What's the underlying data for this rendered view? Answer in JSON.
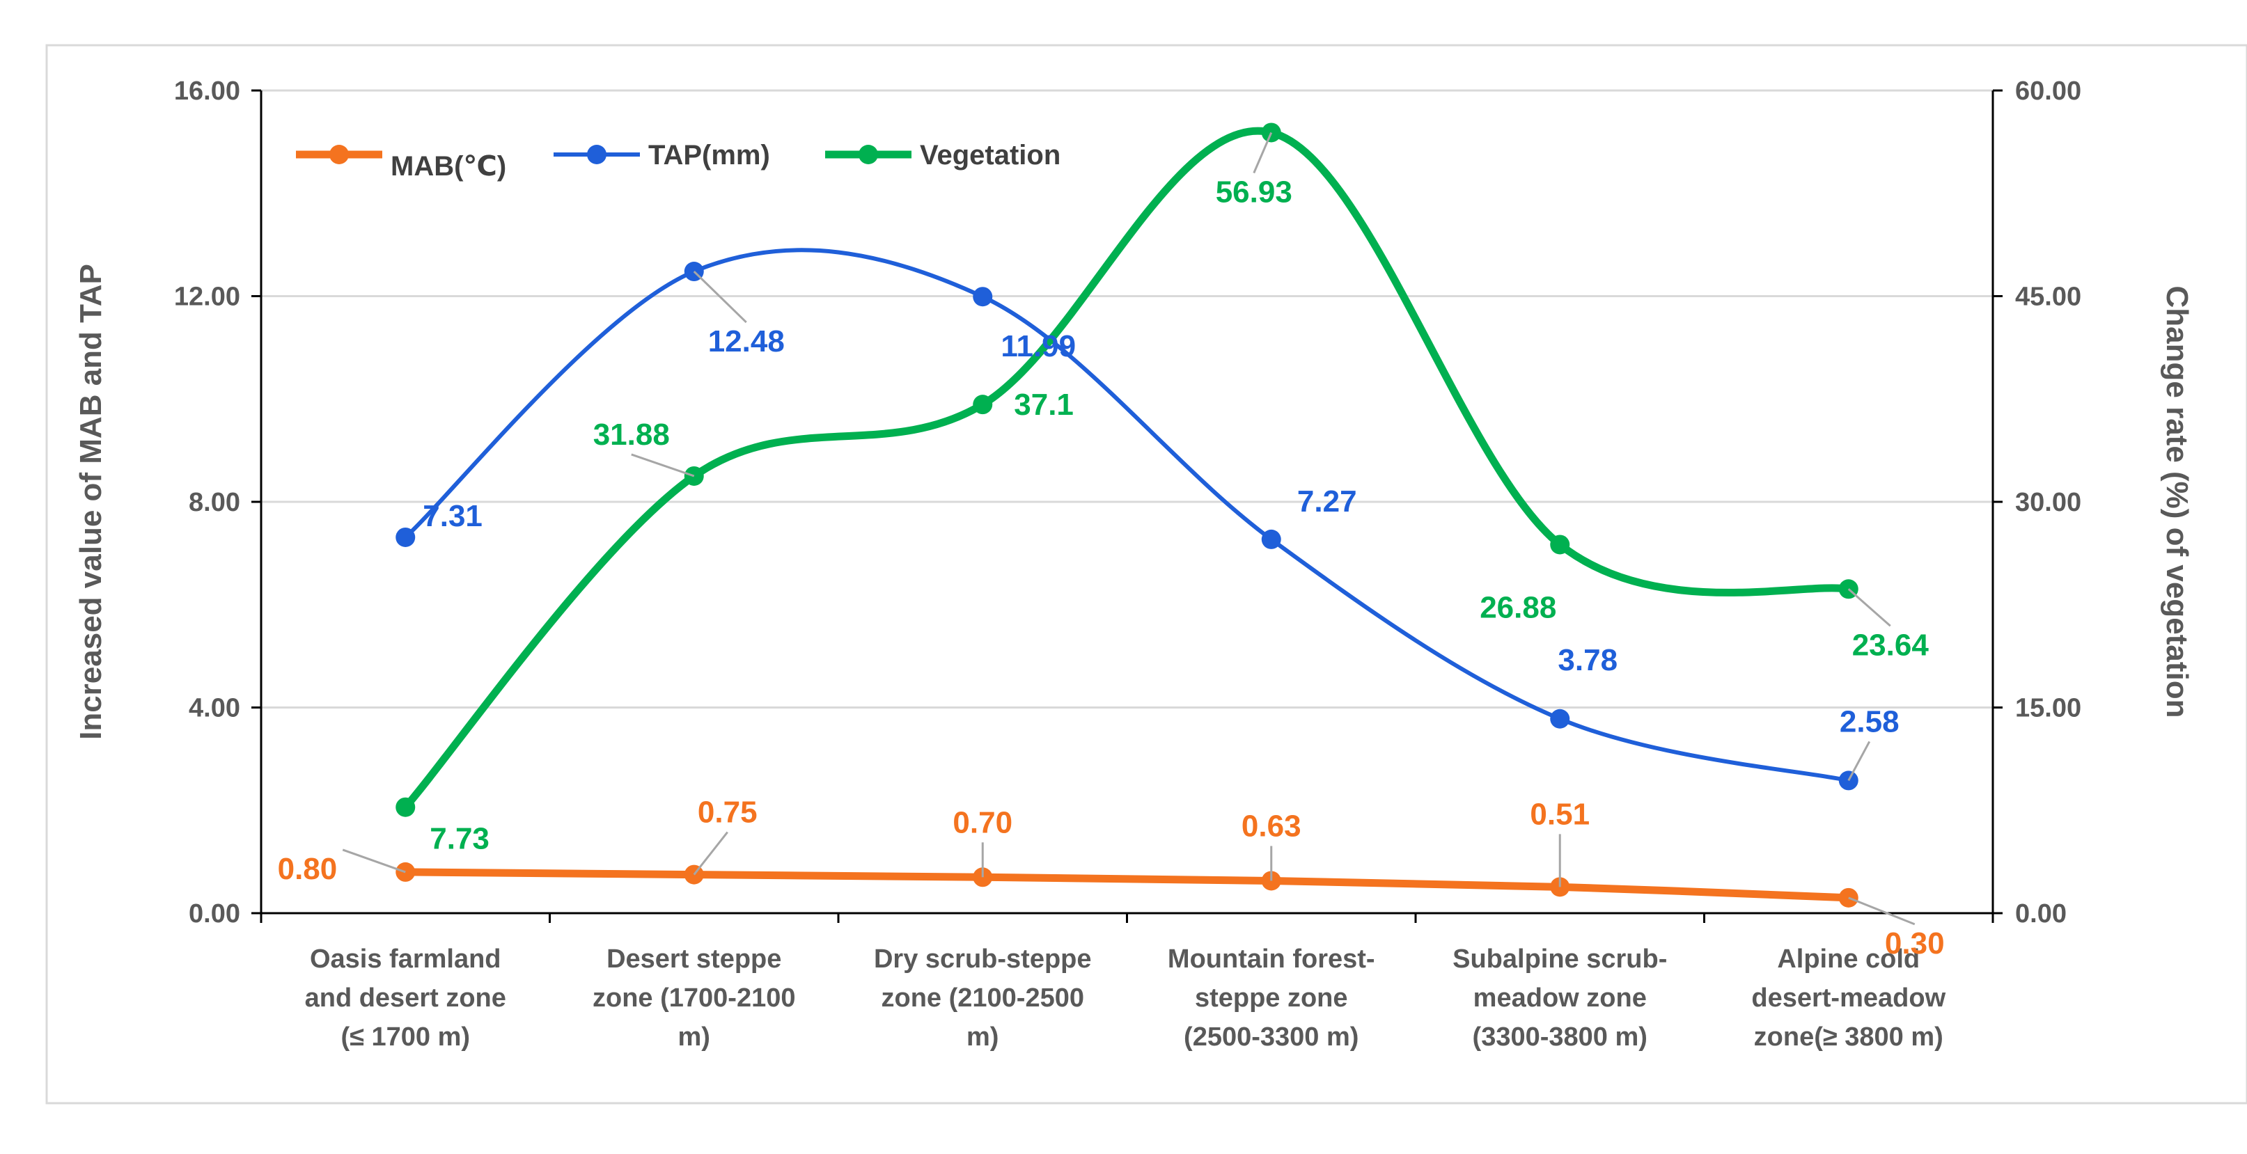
{
  "chart_data": {
    "type": "line",
    "title": "",
    "categories": [
      [
        "Oasis farmland",
        "and desert zone",
        "(≤ 1700 m)"
      ],
      [
        "Desert steppe",
        "zone (1700-2100",
        "m)"
      ],
      [
        "Dry scrub-steppe",
        "zone (2100-2500",
        "m)"
      ],
      [
        "Mountain forest-",
        "steppe zone",
        "(2500-3300 m)"
      ],
      [
        "Subalpine scrub-",
        "meadow zone",
        "(3300-3800 m)"
      ],
      [
        "Alpine cold",
        "desert-meadow",
        "zone(≥ 3800 m)"
      ]
    ],
    "left_axis": {
      "label": "Increased value of MAB and TAP",
      "range": [
        0,
        16
      ],
      "ticks": [
        "0.00",
        "4.00",
        "8.00",
        "12.00",
        "16.00"
      ],
      "tick_values": [
        0,
        4,
        8,
        12,
        16
      ]
    },
    "right_axis": {
      "label": "Change rate (%) of vegetation",
      "range": [
        0,
        60
      ],
      "ticks": [
        "0.00",
        "15.00",
        "30.00",
        "45.00",
        "60.00"
      ],
      "tick_values": [
        0,
        15,
        30,
        45,
        60
      ]
    },
    "grid": true,
    "legend_position": "top-left",
    "series": [
      {
        "name": "MAB(℃)",
        "axis": "left",
        "color": "#f4731f",
        "values": [
          0.8,
          0.75,
          0.7,
          0.63,
          0.51,
          0.3
        ],
        "labels": [
          "0.80",
          "0.75",
          "0.70",
          "0.63",
          "0.51",
          "0.30"
        ]
      },
      {
        "name": "TAP(mm)",
        "axis": "left",
        "color": "#1f5fd9",
        "values": [
          7.31,
          12.48,
          11.99,
          7.27,
          3.78,
          2.58
        ],
        "labels": [
          "7.31",
          "12.48",
          "11.99",
          "7.27",
          "3.78",
          "2.58"
        ]
      },
      {
        "name": "Vegetation",
        "axis": "right",
        "color": "#00b050",
        "values": [
          7.73,
          31.88,
          37.1,
          56.93,
          26.88,
          23.64
        ],
        "labels": [
          "7.73",
          "31.88",
          "37.1",
          "56.93",
          "26.88",
          "23.64"
        ]
      }
    ]
  }
}
